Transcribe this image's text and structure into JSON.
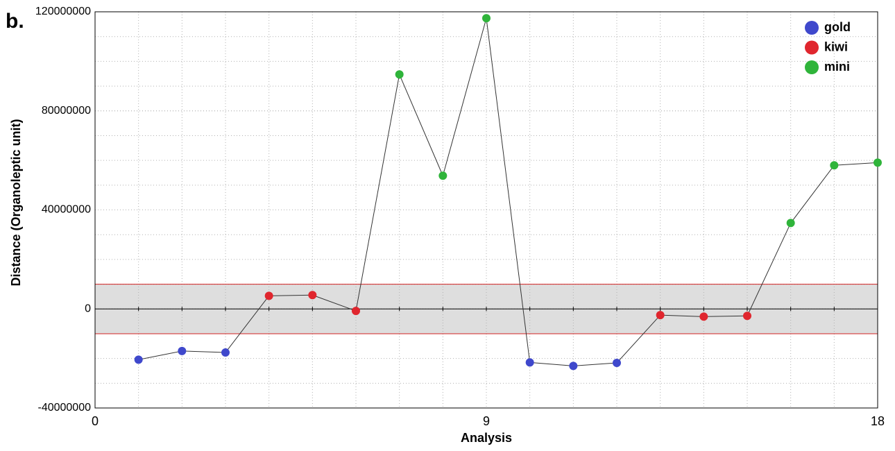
{
  "chart_data": {
    "type": "line",
    "panel_label": "b.",
    "x_label": "Analysis",
    "y_label": "Distance (Organoleptic unit)",
    "series": [
      {
        "name": "gold",
        "color": "#3f48cc",
        "x": [
          1,
          2,
          3,
          10,
          11,
          12
        ],
        "values": [
          -20500000,
          -17000000,
          -17600000,
          -21600000,
          -23000000,
          -21800000
        ]
      },
      {
        "name": "kiwi",
        "color": "#e0262e",
        "x": [
          4,
          5,
          6,
          13,
          14,
          15
        ],
        "values": [
          5300000,
          5600000,
          -800000,
          -2500000,
          -3100000,
          -2800000
        ]
      },
      {
        "name": "mini",
        "color": "#2fb43a",
        "x": [
          7,
          8,
          9,
          16,
          17,
          18
        ],
        "values": [
          94700000,
          53800000,
          117400000,
          34700000,
          58000000,
          59100000
        ]
      }
    ],
    "line_color": "#333333",
    "band": [
      -10000000,
      10000000
    ],
    "band_color": "#dedede",
    "band_edge_color": "#d02020",
    "xlim": [
      0,
      18
    ],
    "xticks": [
      0,
      9,
      18
    ],
    "ylim": [
      -40000000,
      120000000
    ],
    "yticks": [
      -40000000,
      0,
      40000000,
      80000000,
      120000000
    ],
    "xgrid": [
      1,
      2,
      3,
      4,
      5,
      6,
      7,
      8,
      9,
      10,
      11,
      12,
      13,
      14,
      15,
      16,
      17
    ],
    "ygrid": [
      -30000000,
      -20000000,
      -10000000,
      10000000,
      20000000,
      30000000,
      40000000,
      50000000,
      60000000,
      70000000,
      80000000,
      90000000,
      100000000,
      110000000
    ],
    "legend": "top-right"
  }
}
